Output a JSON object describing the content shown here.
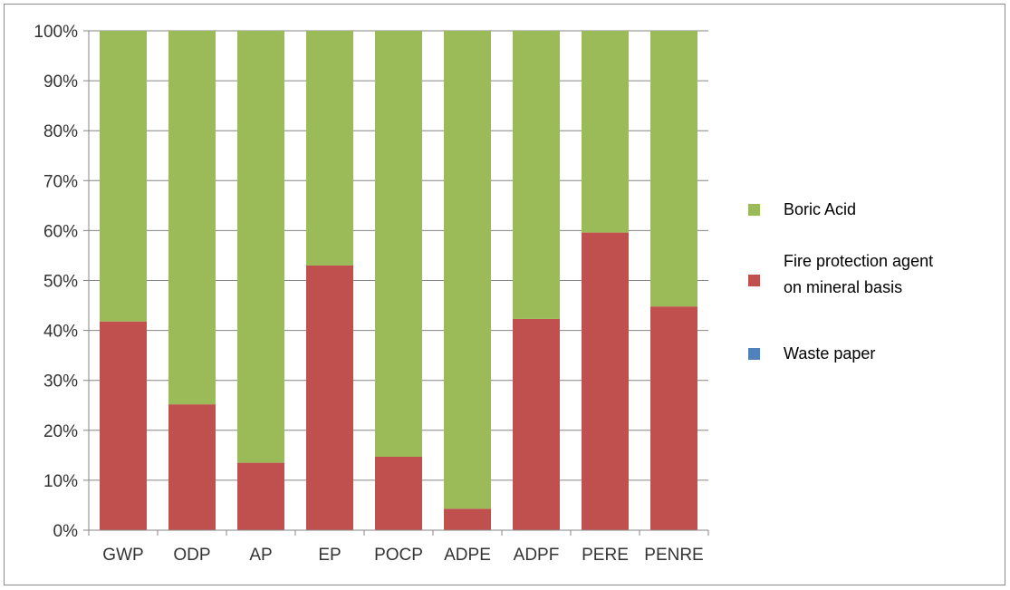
{
  "chart_data": {
    "type": "bar",
    "stacked": true,
    "normalized_percent": true,
    "categories": [
      "GWP",
      "ODP",
      "AP",
      "EP",
      "POCP",
      "ADPE",
      "ADPF",
      "PERE",
      "PENRE"
    ],
    "series": [
      {
        "name": "Waste paper",
        "color": "#4f81bd",
        "values": [
          0,
          0,
          0,
          0,
          0,
          0,
          0,
          0,
          0
        ]
      },
      {
        "name": "Fire protection agent on mineral basis",
        "name_lines": [
          "Fire protection agent",
          "on mineral basis"
        ],
        "color": "#c0504d",
        "values": [
          41.8,
          25.2,
          13.5,
          53.0,
          14.7,
          4.3,
          42.3,
          59.6,
          44.8
        ]
      },
      {
        "name": "Boric Acid",
        "color": "#9bbb59",
        "values": [
          58.2,
          74.8,
          86.5,
          47.0,
          85.3,
          95.7,
          57.7,
          40.4,
          55.2
        ]
      }
    ],
    "y_ticks": [
      "0%",
      "10%",
      "20%",
      "30%",
      "40%",
      "50%",
      "60%",
      "70%",
      "80%",
      "90%",
      "100%"
    ],
    "ylim": [
      0,
      100
    ],
    "grid": true,
    "legend_position": "right",
    "legend_order": [
      "Boric Acid",
      "Fire protection agent on mineral basis",
      "Waste paper"
    ],
    "title": "",
    "xlabel": "",
    "ylabel": ""
  }
}
